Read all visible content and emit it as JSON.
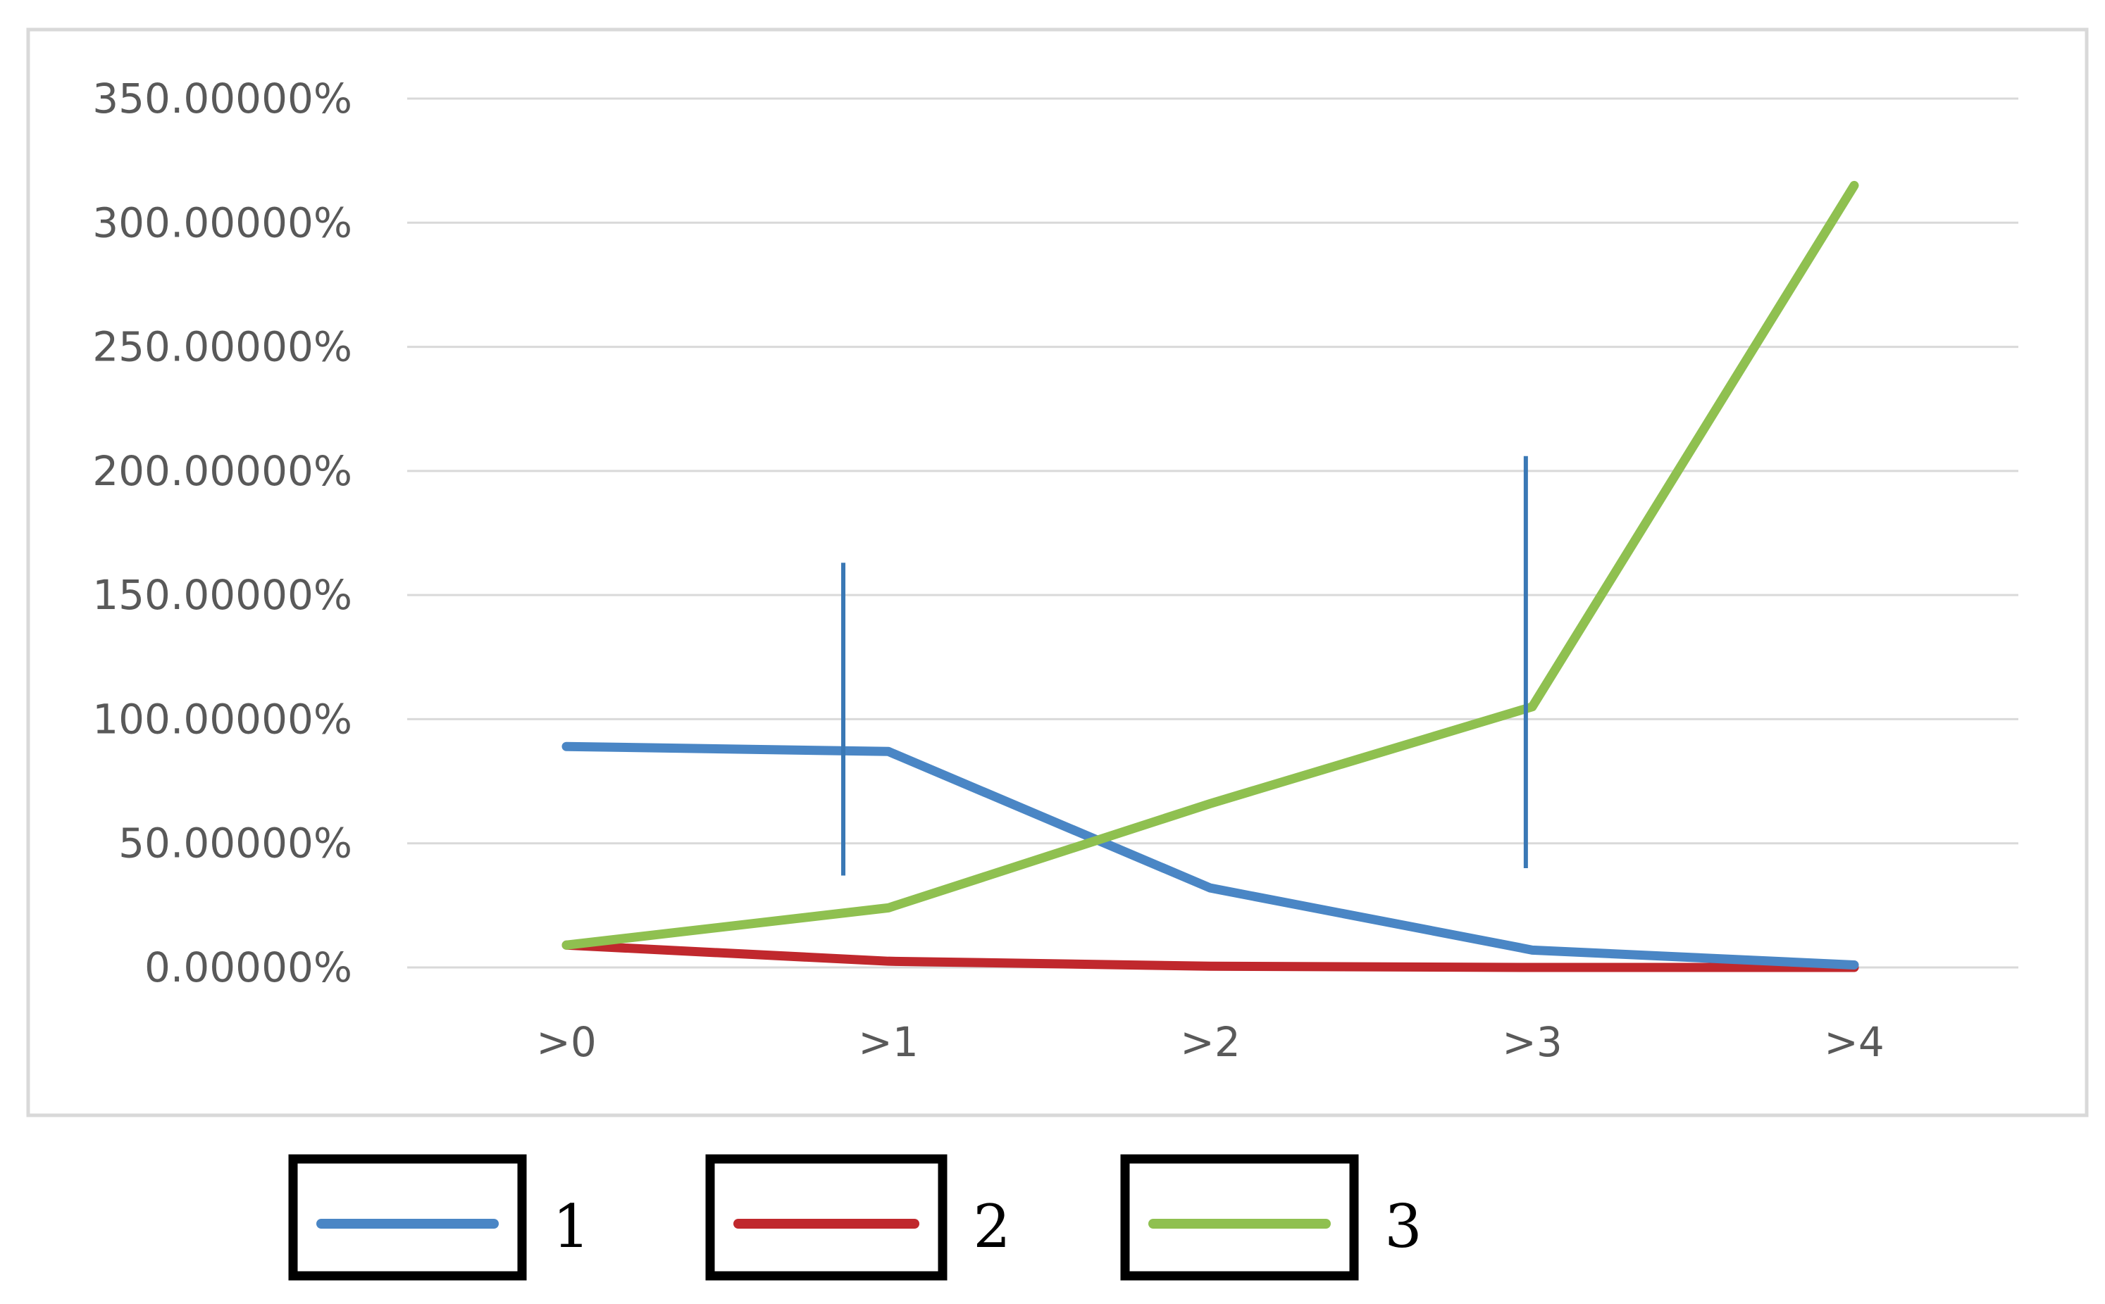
{
  "chart_data": {
    "type": "line",
    "title": "",
    "xlabel": "",
    "ylabel": "",
    "categories": [
      ">0",
      ">1",
      ">2",
      ">3",
      ">4"
    ],
    "y_ticks": [
      "0.00000%",
      "50.00000%",
      "100.00000%",
      "150.00000%",
      "200.00000%",
      "250.00000%",
      "300.00000%",
      "350.00000%"
    ],
    "ylim": [
      0,
      350
    ],
    "grid": true,
    "legend_position": "bottom",
    "series": [
      {
        "name": "1",
        "color": "#4a86c5",
        "values": [
          89,
          87,
          32,
          7,
          1
        ]
      },
      {
        "name": "2",
        "color": "#c0282d",
        "values": [
          9,
          2.5,
          0.5,
          0,
          0
        ]
      },
      {
        "name": "3",
        "color": "#8fc050",
        "values": [
          9,
          24,
          66,
          105,
          315
        ]
      }
    ],
    "markers": [
      {
        "x_index": 0.86,
        "y_low": 37,
        "y_high": 163
      },
      {
        "x_index": 2.98,
        "y_low": 40,
        "y_high": 206
      }
    ],
    "marker_color": "#3a78b5"
  }
}
